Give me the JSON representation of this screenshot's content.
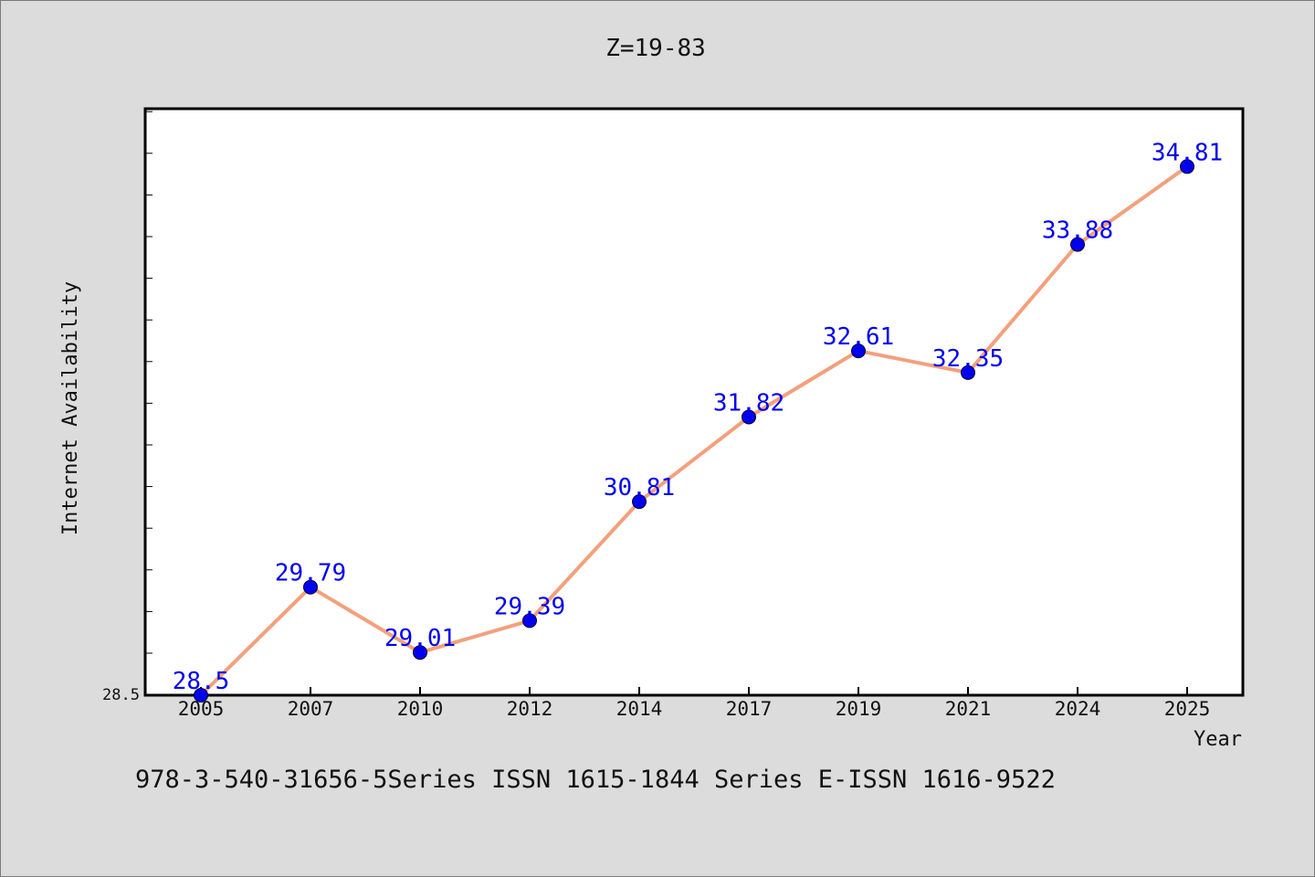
{
  "chart_data": {
    "type": "line",
    "title": "Z=19-83",
    "xlabel": "Year",
    "ylabel": "Internet Availability",
    "categories": [
      "2005",
      "2007",
      "2010",
      "2012",
      "2014",
      "2017",
      "2019",
      "2021",
      "2024",
      "2025"
    ],
    "series": [
      {
        "values": [
          28.5,
          29.79,
          29.01,
          29.39,
          30.81,
          31.82,
          32.61,
          32.35,
          33.88,
          34.81
        ]
      }
    ],
    "point_labels": [
      "28.5",
      "29.79",
      "29.01",
      "29.39",
      "30.81",
      "31.82",
      "32.61",
      "32.35",
      "33.88",
      "34.81"
    ],
    "y_tick_label": "28.5",
    "ylim": [
      28.5,
      35.5
    ],
    "grid": false,
    "colors": {
      "line": "#f4a07c",
      "marker": "#0000ee",
      "label": "#0000ee",
      "background": "#dcdcdc",
      "plot_bg": "#ffffff"
    }
  },
  "footer": "978-3-540-31656-5Series ISSN 1615-1844 Series E-ISSN 1616-9522"
}
